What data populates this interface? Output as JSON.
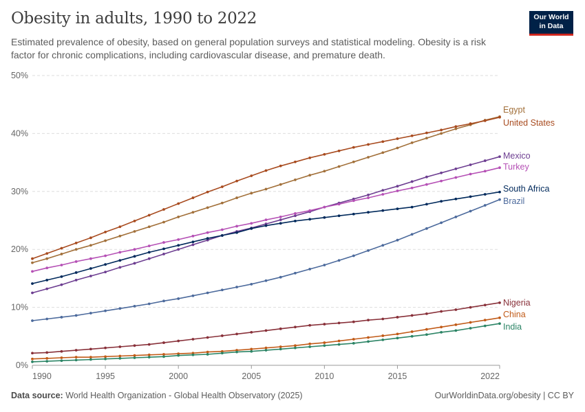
{
  "header": {
    "title": "Obesity in adults, 1990 to 2022",
    "subtitle": "Estimated prevalence of obesity, based on general population surveys and statistical modeling. Obesity is a risk factor for chronic complications, including cardiovascular disease, and premature death.",
    "logo_line1": "Our World",
    "logo_line2": "in Data"
  },
  "footer": {
    "source_label": "Data source:",
    "source_text": "World Health Organization - Global Health Observatory (2025)",
    "right_text": "OurWorldinData.org/obesity | CC BY"
  },
  "colors": {
    "brand_navy": "#002147",
    "brand_red": "#ce261e"
  },
  "chart_data": {
    "type": "line",
    "title": "Obesity in adults, 1990 to 2022",
    "xlabel": "",
    "ylabel": "",
    "xlim": [
      1990,
      2022
    ],
    "ylim": [
      0,
      50
    ],
    "x_ticks": [
      1990,
      1995,
      2000,
      2005,
      2010,
      2015,
      2022
    ],
    "y_ticks": [
      0,
      10,
      20,
      30,
      40,
      50
    ],
    "y_tick_labels": [
      "0%",
      "10%",
      "20%",
      "30%",
      "40%",
      "50%"
    ],
    "grid": "horizontal-dashed",
    "legend": "inline-right",
    "x": [
      1990,
      1991,
      1992,
      1993,
      1994,
      1995,
      1996,
      1997,
      1998,
      1999,
      2000,
      2001,
      2002,
      2003,
      2004,
      2005,
      2006,
      2007,
      2008,
      2009,
      2010,
      2011,
      2012,
      2013,
      2014,
      2015,
      2016,
      2017,
      2018,
      2019,
      2020,
      2021,
      2022
    ],
    "series": [
      {
        "name": "Egypt",
        "color": "#a2703a",
        "values": [
          17.7,
          18.4,
          19.2,
          20.0,
          20.7,
          21.5,
          22.3,
          23.1,
          23.9,
          24.7,
          25.6,
          26.4,
          27.2,
          28.0,
          28.9,
          29.7,
          30.4,
          31.2,
          32.0,
          32.8,
          33.5,
          34.3,
          35.1,
          35.9,
          36.7,
          37.5,
          38.4,
          39.2,
          40.0,
          40.8,
          41.5,
          42.3,
          42.9
        ]
      },
      {
        "name": "United States",
        "color": "#a84b1f",
        "values": [
          18.4,
          19.3,
          20.2,
          21.1,
          22.0,
          23.0,
          23.9,
          24.9,
          25.9,
          26.9,
          27.9,
          28.9,
          29.9,
          30.8,
          31.8,
          32.7,
          33.6,
          34.4,
          35.1,
          35.8,
          36.4,
          37.0,
          37.6,
          38.1,
          38.6,
          39.1,
          39.6,
          40.1,
          40.6,
          41.2,
          41.7,
          42.2,
          42.8
        ]
      },
      {
        "name": "Mexico",
        "color": "#6d3e91",
        "values": [
          12.5,
          13.2,
          13.9,
          14.7,
          15.4,
          16.1,
          16.9,
          17.6,
          18.4,
          19.2,
          20.0,
          20.8,
          21.6,
          22.4,
          23.1,
          23.7,
          24.4,
          25.1,
          25.8,
          26.5,
          27.3,
          28.0,
          28.7,
          29.4,
          30.2,
          30.9,
          31.7,
          32.5,
          33.2,
          33.9,
          34.6,
          35.3,
          36.0
        ]
      },
      {
        "name": "Turkey",
        "color": "#b550b5",
        "values": [
          16.2,
          16.8,
          17.3,
          17.9,
          18.4,
          18.9,
          19.5,
          20.0,
          20.6,
          21.2,
          21.7,
          22.3,
          22.9,
          23.4,
          24.0,
          24.5,
          25.1,
          25.6,
          26.2,
          26.7,
          27.3,
          27.8,
          28.4,
          28.9,
          29.5,
          30.1,
          30.6,
          31.2,
          31.8,
          32.4,
          33.0,
          33.5,
          34.1
        ]
      },
      {
        "name": "South Africa",
        "color": "#00295b",
        "values": [
          14.1,
          14.7,
          15.3,
          16.0,
          16.7,
          17.4,
          18.1,
          18.8,
          19.5,
          20.1,
          20.7,
          21.3,
          21.9,
          22.4,
          22.9,
          23.6,
          24.1,
          24.5,
          24.9,
          25.2,
          25.5,
          25.8,
          26.1,
          26.4,
          26.7,
          27.0,
          27.3,
          27.8,
          28.3,
          28.7,
          29.1,
          29.5,
          29.9
        ]
      },
      {
        "name": "Brazil",
        "color": "#4c6a9c",
        "values": [
          7.7,
          8.0,
          8.3,
          8.6,
          9.0,
          9.4,
          9.8,
          10.2,
          10.6,
          11.1,
          11.5,
          12.0,
          12.5,
          13.0,
          13.5,
          14.0,
          14.6,
          15.2,
          15.9,
          16.6,
          17.3,
          18.1,
          18.9,
          19.8,
          20.7,
          21.6,
          22.6,
          23.6,
          24.6,
          25.6,
          26.6,
          27.6,
          28.6
        ]
      },
      {
        "name": "Nigeria",
        "color": "#883039",
        "values": [
          2.1,
          2.2,
          2.4,
          2.6,
          2.8,
          3.0,
          3.2,
          3.4,
          3.6,
          3.9,
          4.2,
          4.5,
          4.8,
          5.1,
          5.4,
          5.7,
          6.0,
          6.3,
          6.6,
          6.9,
          7.1,
          7.3,
          7.5,
          7.8,
          8.0,
          8.3,
          8.6,
          8.9,
          9.3,
          9.6,
          10.0,
          10.4,
          10.8
        ]
      },
      {
        "name": "China",
        "color": "#c15a17",
        "values": [
          1.1,
          1.2,
          1.3,
          1.4,
          1.4,
          1.5,
          1.6,
          1.7,
          1.8,
          1.9,
          2.0,
          2.1,
          2.3,
          2.4,
          2.6,
          2.8,
          3.0,
          3.2,
          3.4,
          3.7,
          3.9,
          4.2,
          4.5,
          4.8,
          5.1,
          5.4,
          5.8,
          6.2,
          6.6,
          7.0,
          7.4,
          7.8,
          8.2
        ]
      },
      {
        "name": "India",
        "color": "#2b8465",
        "values": [
          0.6,
          0.7,
          0.8,
          0.9,
          1.0,
          1.1,
          1.2,
          1.3,
          1.4,
          1.5,
          1.7,
          1.8,
          1.9,
          2.1,
          2.3,
          2.4,
          2.6,
          2.8,
          3.0,
          3.2,
          3.4,
          3.6,
          3.8,
          4.1,
          4.4,
          4.7,
          5.0,
          5.3,
          5.7,
          6.0,
          6.4,
          6.8,
          7.2
        ]
      }
    ]
  }
}
